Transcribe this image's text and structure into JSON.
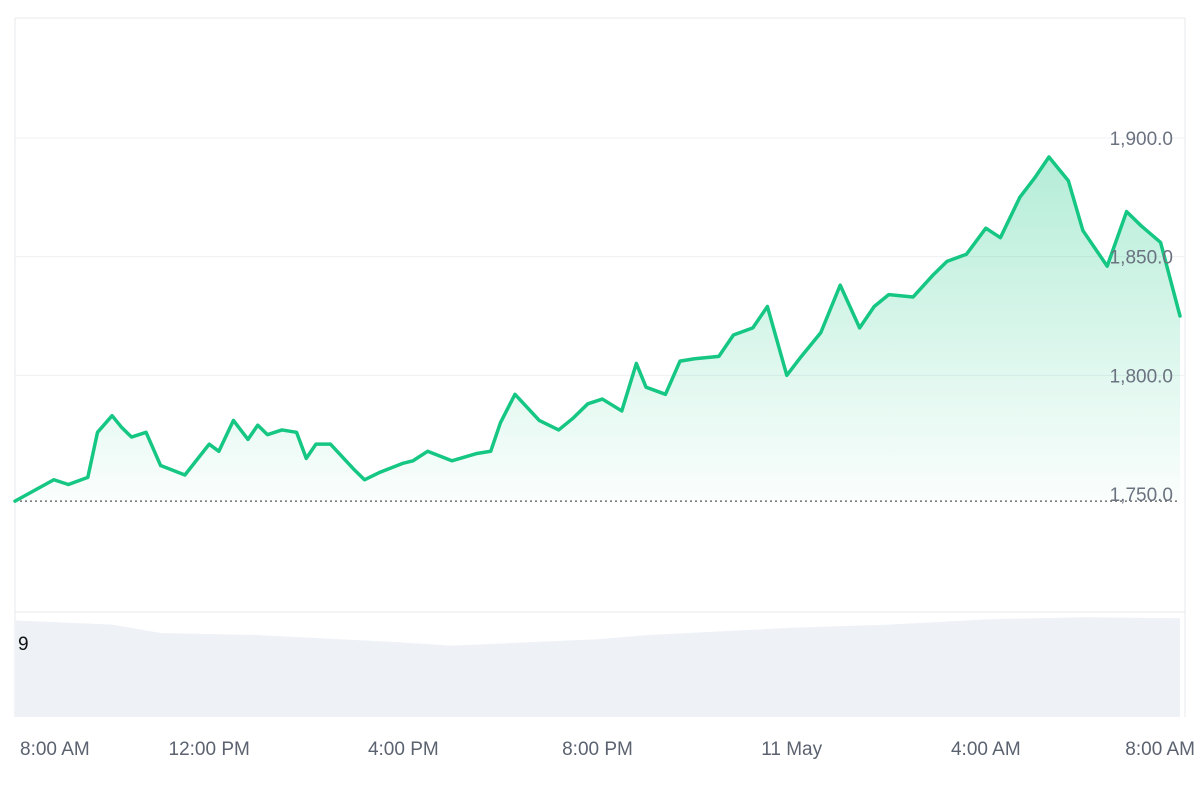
{
  "chart_data": {
    "type": "area",
    "price": {
      "y_ticks": [
        1750,
        1800,
        1850,
        1900
      ],
      "y_tick_labels": [
        "1,750.0",
        "1,800.0",
        "1,850.0",
        "1,900.0"
      ],
      "ylim": [
        1700,
        1950
      ],
      "baseline": 1747,
      "x": [
        0,
        0.8,
        1.1,
        1.5,
        1.7,
        2.0,
        2.2,
        2.4,
        2.7,
        3.0,
        3.5,
        4.0,
        4.2,
        4.5,
        4.8,
        5.0,
        5.2,
        5.5,
        5.8,
        6.0,
        6.2,
        6.5,
        7.0,
        7.2,
        7.5,
        8.0,
        8.2,
        8.5,
        9.0,
        9.5,
        9.8,
        10.0,
        10.3,
        10.8,
        11.2,
        11.5,
        11.8,
        12.1,
        12.5,
        12.8,
        13.0,
        13.4,
        13.7,
        14.0,
        14.5,
        14.8,
        15.2,
        15.5,
        15.9,
        16.2,
        16.6,
        17.0,
        17.4,
        17.7,
        18.0,
        18.5,
        18.9,
        19.2,
        19.6,
        20.0,
        20.3,
        20.7,
        21.0,
        21.3,
        21.7,
        22.0,
        22.5,
        22.9,
        23.2,
        23.6,
        24.0
      ],
      "y": [
        1747,
        1756,
        1754,
        1757,
        1776,
        1783,
        1778,
        1774,
        1776,
        1762,
        1758,
        1771,
        1768,
        1781,
        1773,
        1779,
        1775,
        1777,
        1776,
        1765,
        1771,
        1771,
        1760,
        1756,
        1759,
        1763,
        1764,
        1768,
        1764,
        1767,
        1768,
        1780,
        1792,
        1781,
        1777,
        1782,
        1788,
        1790,
        1785,
        1805,
        1795,
        1792,
        1806,
        1807,
        1808,
        1817,
        1820,
        1829,
        1800,
        1808,
        1818,
        1838,
        1820,
        1829,
        1834,
        1833,
        1842,
        1848,
        1851,
        1862,
        1858,
        1875,
        1883,
        1892,
        1882,
        1861,
        1846,
        1869,
        1863,
        1856,
        1825
      ],
      "x_ticks": [
        0,
        4,
        8,
        12,
        16,
        20,
        24
      ],
      "x_tick_labels": [
        "8:00 AM",
        "12:00 PM",
        "4:00 PM",
        "8:00 PM",
        "11 May",
        "4:00 AM",
        "8:00 AM"
      ],
      "color": "#16c784",
      "grid": true
    },
    "volume": {
      "label": "9",
      "x": [
        0,
        2,
        3,
        5,
        8,
        9,
        10,
        12,
        13,
        16,
        18,
        20,
        22,
        24
      ],
      "values": [
        0.92,
        0.88,
        0.8,
        0.78,
        0.71,
        0.68,
        0.7,
        0.74,
        0.78,
        0.85,
        0.88,
        0.93,
        0.95,
        0.94
      ],
      "color": "#eef1f6"
    }
  }
}
